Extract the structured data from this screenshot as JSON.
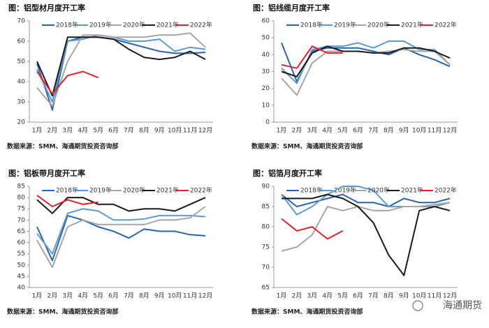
{
  "chart_data": [
    {
      "type": "line",
      "title": "图：铝型材月度开工率",
      "source": "数据来源：SMM、海通期货投资咨询部",
      "categories": [
        "1月",
        "2月",
        "3月",
        "4月",
        "5月",
        "6月",
        "7月",
        "8月",
        "9月",
        "10月",
        "11月",
        "12月"
      ],
      "ylim": [
        20,
        70
      ],
      "yticks": [
        20,
        30,
        40,
        50,
        60,
        70
      ],
      "series": [
        {
          "name": "2018年",
          "color": "#2a63b0",
          "values": [
            49,
            26,
            60,
            62,
            62,
            61,
            59,
            57,
            55,
            54,
            54,
            54.5
          ]
        },
        {
          "name": "2019年",
          "color": "#5b9bd5",
          "values": [
            46,
            30,
            60,
            61,
            63,
            62,
            60,
            60,
            61,
            55,
            57,
            56
          ]
        },
        {
          "name": "2020年",
          "color": "#a6a6a6",
          "values": [
            37,
            28,
            50,
            63,
            63,
            62,
            62,
            62,
            63,
            63,
            64,
            57
          ]
        },
        {
          "name": "2021年",
          "color": "#1a1a1a",
          "values": [
            50,
            33,
            62,
            62,
            62,
            61,
            56,
            52,
            51,
            52,
            55,
            51
          ]
        },
        {
          "name": "2022年",
          "color": "#e8202a",
          "values": [
            45,
            34,
            43,
            45,
            42,
            null,
            null,
            null,
            null,
            null,
            null,
            null
          ]
        }
      ]
    },
    {
      "type": "line",
      "title": "图：铝线缆月度开工率",
      "source": "数据来源：SMM、海通期货投资咨询部",
      "categories": [
        "1月",
        "2月",
        "3月",
        "4月",
        "5月",
        "6月",
        "7月",
        "8月",
        "9月",
        "10月",
        "11月",
        "12月"
      ],
      "ylim": [
        0,
        60
      ],
      "yticks": [
        0,
        10,
        20,
        30,
        40,
        50,
        60
      ],
      "series": [
        {
          "name": "2018年",
          "color": "#2a63b0",
          "values": [
            47,
            24,
            42,
            44,
            44,
            44,
            42,
            40,
            44,
            40,
            37,
            33
          ]
        },
        {
          "name": "2019年",
          "color": "#5b9bd5",
          "values": [
            32,
            23,
            43,
            45,
            45,
            47,
            44,
            48,
            48,
            43,
            43,
            34
          ]
        },
        {
          "name": "2020年",
          "color": "#a6a6a6",
          "values": [
            26,
            16,
            35,
            42,
            42,
            42,
            41,
            42,
            43,
            42,
            42,
            34
          ]
        },
        {
          "name": "2021年",
          "color": "#1a1a1a",
          "values": [
            30,
            27,
            41,
            45,
            42,
            42,
            41,
            41,
            44,
            44,
            42,
            38
          ]
        },
        {
          "name": "2022年",
          "color": "#e8202a",
          "values": [
            34,
            32,
            45,
            41,
            41,
            null,
            null,
            null,
            null,
            null,
            null,
            null
          ]
        }
      ]
    },
    {
      "type": "line",
      "title": "图：铝板带月度开工率",
      "source": "数据来源：SMM、海通期货投资咨询部",
      "categories": [
        "1月",
        "2月",
        "3月",
        "4月",
        "5月",
        "6月",
        "7月",
        "8月",
        "9月",
        "10月",
        "11月",
        "12月"
      ],
      "ylim": [
        40,
        85
      ],
      "yticks": [
        40,
        45,
        50,
        55,
        60,
        65,
        70,
        75,
        80,
        85
      ],
      "series": [
        {
          "name": "2018年",
          "color": "#2a63b0",
          "values": [
            67,
            52,
            72,
            70,
            67,
            65,
            62,
            66,
            65,
            65,
            63.5,
            63
          ]
        },
        {
          "name": "2019年",
          "color": "#5b9bd5",
          "values": [
            64,
            55,
            73,
            75,
            74,
            70,
            70,
            70.5,
            72,
            72,
            72,
            71.5
          ]
        },
        {
          "name": "2020年",
          "color": "#a6a6a6",
          "values": [
            61,
            49,
            67,
            70,
            68,
            68,
            68,
            68,
            70,
            70,
            71,
            76
          ]
        },
        {
          "name": "2021年",
          "color": "#1a1a1a",
          "values": [
            79,
            73,
            80,
            80,
            77,
            77,
            74,
            75,
            75,
            74,
            77,
            80
          ]
        },
        {
          "name": "2022年",
          "color": "#e8202a",
          "values": [
            81,
            76,
            79,
            77,
            78,
            null,
            null,
            null,
            null,
            null,
            null,
            null
          ]
        }
      ]
    },
    {
      "type": "line",
      "title": "图：铝箔月度开工率",
      "source": "数据来源：SMM、海通期货投资咨询部",
      "categories": [
        "1月",
        "2月",
        "3月",
        "4月",
        "5月",
        "6月",
        "7月",
        "8月",
        "9月",
        "10月",
        "11月",
        "12月"
      ],
      "ylim": [
        65,
        90
      ],
      "yticks": [
        65,
        70,
        75,
        80,
        85,
        90
      ],
      "series": [
        {
          "name": "2018年",
          "color": "#2a63b0",
          "values": [
            88,
            85,
            86,
            87,
            88,
            86,
            86,
            85,
            87,
            86,
            86,
            87
          ]
        },
        {
          "name": "2019年",
          "color": "#5b9bd5",
          "values": [
            88,
            83,
            85,
            88,
            90,
            90,
            89,
            85,
            85,
            85,
            85,
            86
          ]
        },
        {
          "name": "2020年",
          "color": "#a6a6a6",
          "values": [
            74,
            75,
            78,
            85,
            84,
            85,
            84,
            84,
            85,
            85,
            85.5,
            86
          ]
        },
        {
          "name": "2021年",
          "color": "#1a1a1a",
          "values": [
            87,
            87,
            87,
            88,
            87,
            85,
            81,
            73,
            68,
            84,
            85,
            84
          ]
        },
        {
          "name": "2022年",
          "color": "#e8202a",
          "values": [
            82,
            79,
            80,
            77,
            79,
            null,
            null,
            null,
            null,
            null,
            null,
            null
          ]
        }
      ]
    }
  ],
  "watermark": "海通期货"
}
